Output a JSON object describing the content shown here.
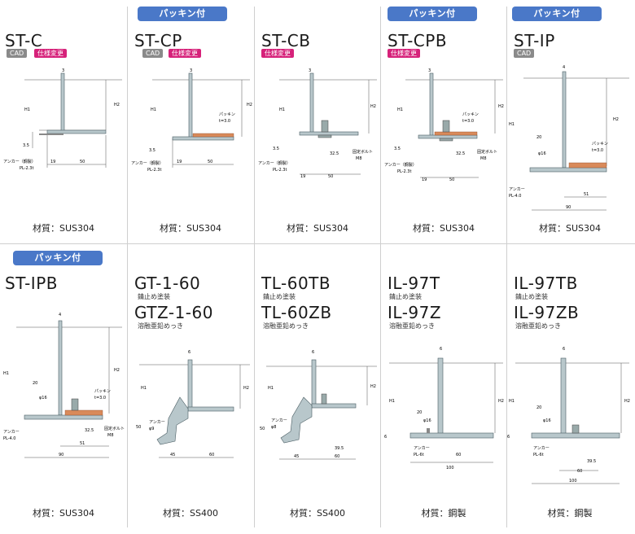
{
  "products": [
    {
      "model": "ST-C",
      "packing": "",
      "tags": [
        "CAD",
        "仕様変更"
      ],
      "coatings": [],
      "material": "材質：SUS304"
    },
    {
      "model": "ST-CP",
      "packing": "パッキン付",
      "tags": [
        "CAD",
        "仕様変更"
      ],
      "coatings": [],
      "material": "材質：SUS304"
    },
    {
      "model": "ST-CB",
      "packing": "",
      "tags": [
        "仕様変更"
      ],
      "coatings": [],
      "material": "材質：SUS304"
    },
    {
      "model": "ST-CPB",
      "packing": "パッキン付",
      "tags": [
        "仕様変更"
      ],
      "coatings": [],
      "material": "材質：SUS304"
    },
    {
      "model": "ST-IP",
      "packing": "パッキン付",
      "tags": [
        "CAD"
      ],
      "coatings": [],
      "material": "材質：SUS304"
    },
    {
      "model": "ST-IPB",
      "packing": "パッキン付",
      "tags": [],
      "coatings": [],
      "material": "材質：SUS304"
    },
    {
      "model": "GT-1-60",
      "model2": "GTZ-1-60",
      "packing": "",
      "tags": [],
      "coatings": [
        "錆止め塗装",
        "溶融亜鉛めっき"
      ],
      "material": "材質：SS400"
    },
    {
      "model": "TL-60TB",
      "model2": "TL-60ZB",
      "packing": "",
      "tags": [],
      "coatings": [
        "錆止め塗装",
        "溶融亜鉛めっき"
      ],
      "material": "材質：SS400"
    },
    {
      "model": "IL-97T",
      "model2": "IL-97Z",
      "packing": "",
      "tags": [],
      "coatings": [
        "錆止め塗装",
        "溶融亜鉛めっき"
      ],
      "material": "材質：鋼製"
    },
    {
      "model": "IL-97TB",
      "model2": "IL-97ZB",
      "packing": "",
      "tags": [],
      "coatings": [
        "錆止め塗装",
        "溶融亜鉛めっき"
      ],
      "material": "材質：鋼製"
    }
  ],
  "drawing_labels": {
    "h1": "H1",
    "h2": "H2",
    "anchor_steel": "アンカー（鋼製）",
    "anchor": "アンカー",
    "pl23": "PL-2.3t",
    "pl40": "PL-4.0",
    "pl6": "PL-6t",
    "packing": "パッキン",
    "t30": "t=3.0",
    "bolt": "固定ボルト",
    "m8": "M8",
    "phi16": "φ16",
    "phi9": "φ9",
    "phi8": "φ8",
    "d3": "3",
    "d4": "4",
    "d6": "6",
    "d35": "3.5",
    "d19": "19",
    "d20": "20",
    "d50": "50",
    "d325": "32.5",
    "d51": "51",
    "d90": "90",
    "d45": "45",
    "d60": "60",
    "d395": "39.5",
    "d100": "100"
  },
  "colors": {
    "pill": "#4a78c8",
    "steel": "#b8c7cb",
    "steel_stroke": "#4a5d63",
    "packing": "#d98a5a",
    "spec": "#d6227a"
  }
}
